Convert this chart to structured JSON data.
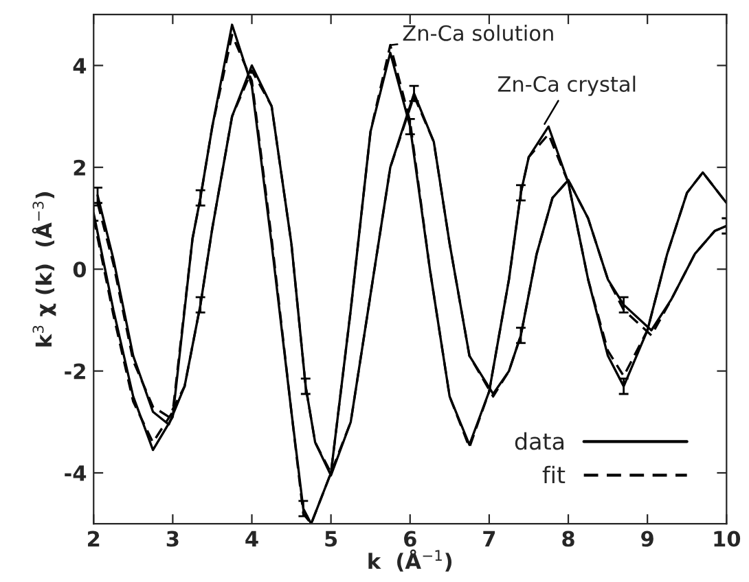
{
  "chart_data": {
    "type": "line",
    "xlabel": "k  (Å$^{−1}$)",
    "ylabel": "k$^{3}$ χ (k)  (Å$^{−3}$)",
    "xlim": [
      2,
      10
    ],
    "ylim": [
      -5,
      5
    ],
    "xticks": [
      2,
      3,
      4,
      5,
      6,
      7,
      8,
      9,
      10
    ],
    "yticks": [
      -4,
      -2,
      0,
      2,
      4
    ],
    "grid": false,
    "legend": "bottom right",
    "marker": "none",
    "series": [
      {
        "name": "data",
        "color": "#000000",
        "line_style": "solid",
        "x": [
          2.0,
          2.25,
          2.5,
          2.75,
          3.0,
          3.25,
          3.35,
          3.5,
          3.75,
          4.0,
          4.25,
          4.5,
          4.65,
          4.75,
          5.0,
          5.25,
          5.5,
          5.75,
          6.0,
          6.25,
          6.5,
          6.75,
          7.0,
          7.25,
          7.4,
          7.5,
          7.75,
          8.0,
          8.25,
          8.5,
          8.7,
          9.0,
          9.25,
          9.5,
          9.7,
          9.9,
          10.0
        ],
        "values": [
          1.1,
          -0.8,
          -2.5,
          -3.55,
          -2.9,
          0.6,
          1.4,
          2.8,
          4.8,
          3.6,
          0.5,
          -2.8,
          -4.7,
          -5.0,
          -4.0,
          -0.8,
          2.7,
          4.25,
          2.8,
          0.0,
          -2.5,
          -3.45,
          -2.4,
          -0.2,
          1.5,
          2.2,
          2.8,
          1.7,
          -0.2,
          -1.7,
          -2.3,
          -1.2,
          0.3,
          1.5,
          1.9,
          1.5,
          1.3
        ],
        "errors": [
          0.15,
          null,
          null,
          null,
          null,
          null,
          0.15,
          null,
          null,
          null,
          null,
          null,
          0.15,
          null,
          null,
          null,
          null,
          null,
          0.15,
          null,
          null,
          null,
          null,
          null,
          0.15,
          null,
          null,
          null,
          null,
          null,
          0.15,
          null,
          null,
          null,
          null,
          null,
          null
        ]
      },
      {
        "name": "fit",
        "color": "#000000",
        "line_style": "dashed",
        "x": [
          2.0,
          2.25,
          2.5,
          2.75,
          3.0,
          3.25,
          3.35,
          3.5,
          3.75,
          4.0,
          4.25,
          4.5,
          4.65,
          4.75,
          5.0,
          5.25,
          5.5,
          5.75,
          6.0,
          6.25,
          6.5,
          6.75,
          7.0,
          7.25,
          7.4,
          7.5,
          7.75,
          8.0,
          8.25,
          8.5,
          8.7,
          9.0,
          9.25,
          9.5,
          9.7,
          9.9,
          10.0
        ],
        "values": [
          1.0,
          -0.9,
          -2.6,
          -3.4,
          -2.8,
          0.6,
          1.4,
          2.8,
          4.6,
          3.7,
          0.6,
          -2.8,
          -4.8,
          -5.0,
          -4.0,
          -0.8,
          2.7,
          4.4,
          2.9,
          0.0,
          -2.5,
          -3.5,
          -2.4,
          -0.2,
          1.5,
          2.2,
          2.65,
          1.7,
          -0.2,
          -1.6,
          -2.1,
          -1.2,
          0.3,
          1.5,
          1.9,
          1.5,
          1.3
        ]
      },
      {
        "color": "#000000",
        "line_style": "solid",
        "x": [
          2.05,
          2.25,
          2.5,
          2.75,
          2.95,
          3.15,
          3.35,
          3.5,
          3.75,
          4.0,
          4.25,
          4.5,
          4.68,
          4.8,
          5.0,
          5.25,
          5.5,
          5.75,
          6.05,
          6.3,
          6.5,
          6.75,
          7.05,
          7.25,
          7.4,
          7.6,
          7.8,
          8.0,
          8.25,
          8.5,
          8.7,
          9.05,
          9.3,
          9.6,
          9.85,
          10.0
        ],
        "values": [
          1.45,
          0.2,
          -1.7,
          -2.8,
          -3.05,
          -2.3,
          -0.7,
          0.8,
          3.0,
          4.0,
          3.2,
          0.5,
          -2.3,
          -3.4,
          -4.05,
          -3.0,
          -0.5,
          2.0,
          3.45,
          2.5,
          0.5,
          -1.7,
          -2.45,
          -2.0,
          -1.3,
          0.3,
          1.4,
          1.75,
          1.0,
          -0.2,
          -0.7,
          -1.2,
          -0.6,
          0.3,
          0.75,
          0.85
        ],
        "errors": [
          0.15,
          null,
          null,
          null,
          null,
          null,
          0.15,
          null,
          null,
          null,
          null,
          null,
          0.15,
          null,
          null,
          null,
          null,
          null,
          0.15,
          null,
          null,
          null,
          null,
          null,
          0.15,
          null,
          null,
          null,
          null,
          null,
          0.15,
          null,
          null,
          null,
          null,
          0.15
        ]
      },
      {
        "color": "#000000",
        "line_style": "dashed",
        "x": [
          2.05,
          2.25,
          2.5,
          2.75,
          2.95,
          3.15,
          3.35,
          3.5,
          3.75,
          4.0,
          4.25,
          4.5,
          4.68,
          4.8,
          5.0,
          5.25,
          5.5,
          5.75,
          6.05,
          6.3,
          6.5,
          6.75,
          7.05,
          7.25,
          7.4,
          7.6,
          7.8,
          8.0,
          8.25,
          8.5,
          8.7,
          9.05,
          9.3,
          9.6,
          9.85,
          10.0
        ],
        "values": [
          1.3,
          0.1,
          -1.8,
          -2.7,
          -2.9,
          -2.3,
          -0.7,
          0.8,
          3.0,
          3.9,
          3.2,
          0.5,
          -2.3,
          -3.4,
          -4.0,
          -3.0,
          -0.5,
          2.0,
          3.4,
          2.5,
          0.5,
          -1.7,
          -2.5,
          -2.0,
          -1.3,
          0.3,
          1.4,
          1.75,
          1.0,
          -0.2,
          -0.8,
          -1.3,
          -0.6,
          0.3,
          0.75,
          0.85
        ]
      }
    ],
    "annotations": [
      {
        "text": "Zn-Ca solution",
        "x": 5.75,
        "y": 4.4
      },
      {
        "text": "Zn-Ca crystal",
        "x": 7.7,
        "y": 2.85
      }
    ]
  }
}
